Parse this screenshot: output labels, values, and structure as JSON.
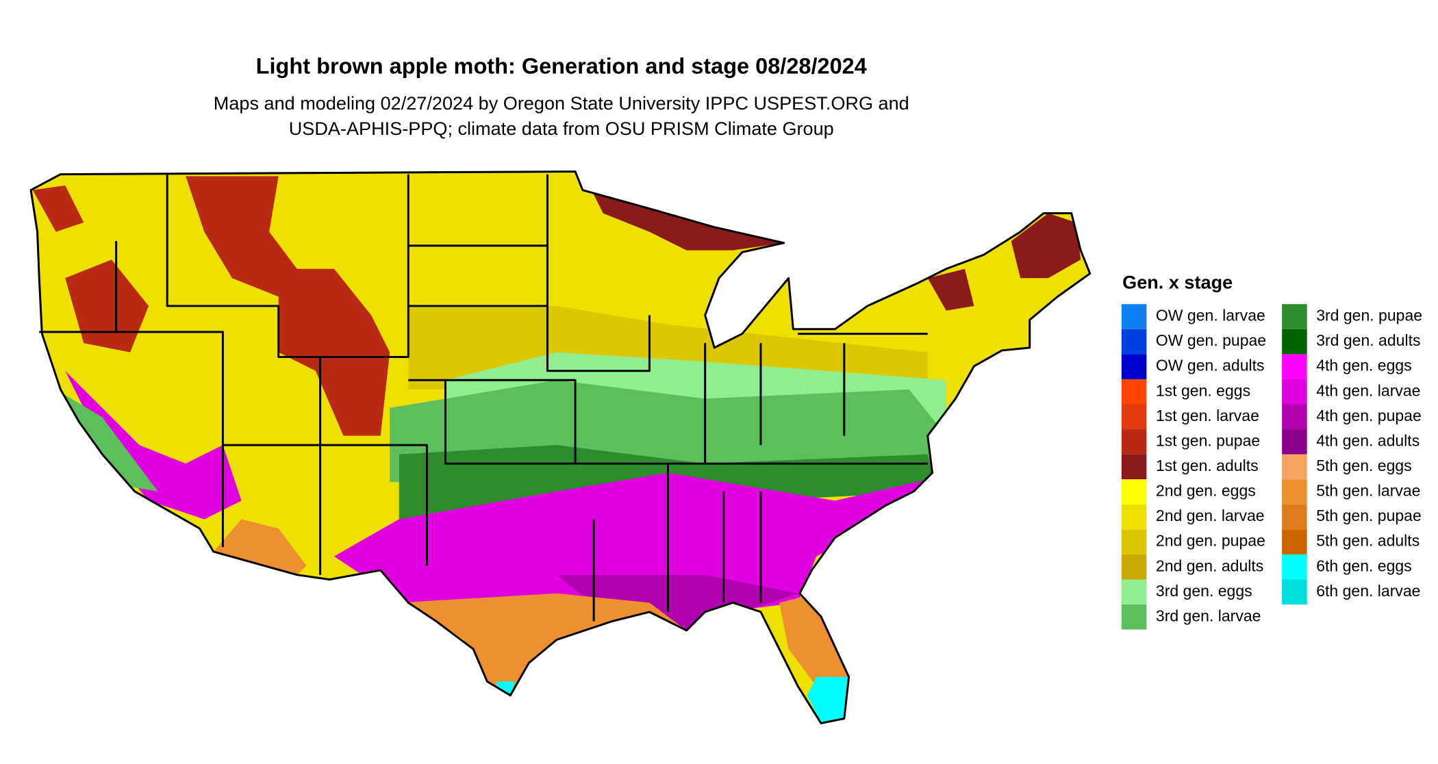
{
  "title": "Light brown apple moth: Generation and stage 08/28/2024",
  "subtitle": [
    "Maps and modeling 02/27/2024 by Oregon State University IPPC USPEST.ORG and",
    "USDA-APHIS-PPQ; climate data from OSU PRISM Climate Group"
  ],
  "legend": {
    "title": "Gen. x stage",
    "items": [
      {
        "label": "OW gen. larvae",
        "color": "#0f80f0"
      },
      {
        "label": "OW gen. pupae",
        "color": "#0040e0"
      },
      {
        "label": "OW gen. adults",
        "color": "#0000cd"
      },
      {
        "label": "1st gen. eggs",
        "color": "#ff4500"
      },
      {
        "label": "1st gen. larvae",
        "color": "#e03c10"
      },
      {
        "label": "1st gen. pupae",
        "color": "#b82a14"
      },
      {
        "label": "1st gen. adults",
        "color": "#8b1a1a"
      },
      {
        "label": "2nd gen. eggs",
        "color": "#ffff00"
      },
      {
        "label": "2nd gen. larvae",
        "color": "#eee000"
      },
      {
        "label": "2nd gen. pupae",
        "color": "#dcc800"
      },
      {
        "label": "2nd gen. adults",
        "color": "#c8aa00"
      },
      {
        "label": "3rd gen. eggs",
        "color": "#90ee90"
      },
      {
        "label": "3rd gen. larvae",
        "color": "#5cbf5c"
      },
      {
        "label": "3rd gen. pupae",
        "color": "#2e8b2e"
      },
      {
        "label": "3rd gen. adults",
        "color": "#006400"
      },
      {
        "label": "4th gen. eggs",
        "color": "#ff00ff"
      },
      {
        "label": "4th gen. larvae",
        "color": "#e000e0"
      },
      {
        "label": "4th gen. pupae",
        "color": "#b000b0"
      },
      {
        "label": "4th gen. adults",
        "color": "#8b008b"
      },
      {
        "label": "5th gen. eggs",
        "color": "#f4a460"
      },
      {
        "label": "5th gen. larvae",
        "color": "#ec9030"
      },
      {
        "label": "5th gen. pupae",
        "color": "#e07c20"
      },
      {
        "label": "5th gen. adults",
        "color": "#cd6600"
      },
      {
        "label": "6th gen. eggs",
        "color": "#00ffff"
      },
      {
        "label": "6th gen. larvae",
        "color": "#00dede"
      }
    ]
  }
}
